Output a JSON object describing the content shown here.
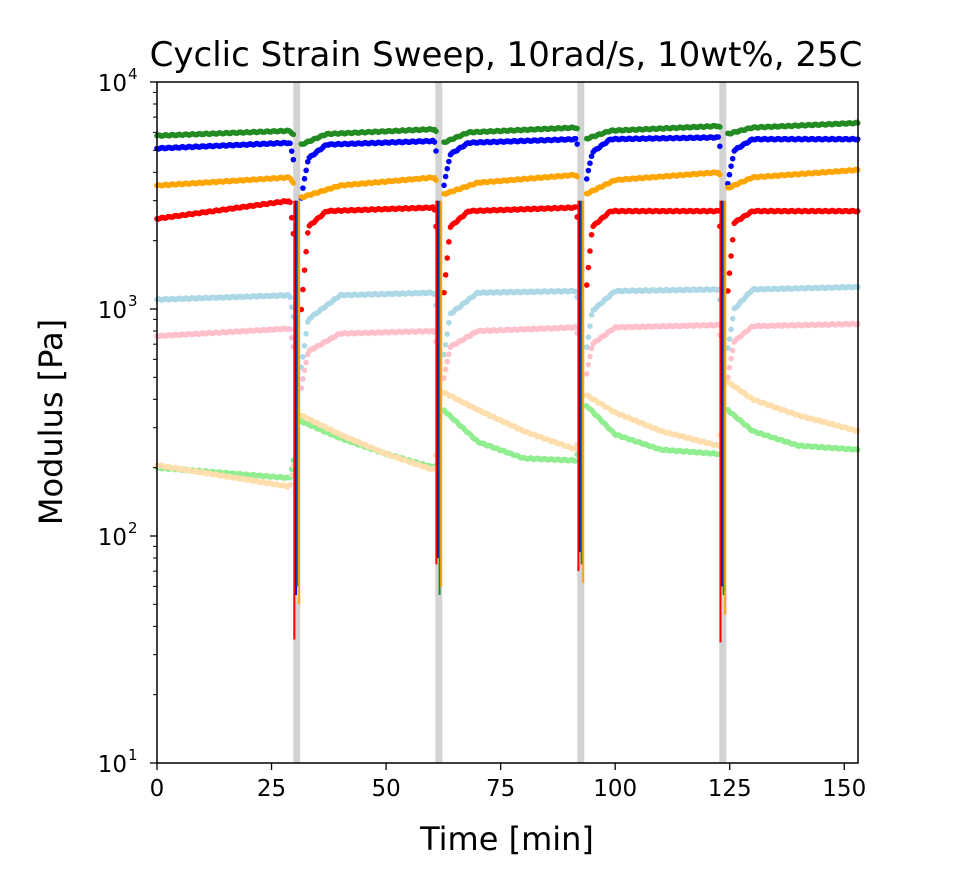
{
  "chart_data": {
    "type": "scatter",
    "title": "Cyclic Strain Sweep, 10rad/s, 10wt%, 25C",
    "xlabel": "Time [min]",
    "ylabel": "Modulus [Pa]",
    "xlim": [
      0,
      153
    ],
    "ylim": [
      10,
      10000
    ],
    "yscale": "log",
    "grid": false,
    "x_ticks": [
      0,
      25,
      50,
      75,
      100,
      125,
      150
    ],
    "x_tick_labels": [
      "0",
      "25",
      "50",
      "75",
      "100",
      "125",
      "150"
    ],
    "y_ticks": [
      10,
      100,
      1000,
      10000
    ],
    "y_tick_labels": [
      {
        "base": "10",
        "exp": "1"
      },
      {
        "base": "10",
        "exp": "2"
      },
      {
        "base": "10",
        "exp": "3"
      },
      {
        "base": "10",
        "exp": "4"
      }
    ],
    "strain_sweep_markers": {
      "color": "#d3d3d3",
      "x": [
        30.5,
        61.5,
        92.5,
        123.5
      ]
    },
    "series": [
      {
        "color": "#228b22",
        "x": [
          0,
          29,
          31.5,
          37,
          60.5,
          62.5,
          68,
          91.5,
          93.5,
          99,
          122.5,
          124.5,
          130,
          153
        ],
        "y": [
          5800,
          6100,
          5300,
          5900,
          6200,
          5400,
          6000,
          6300,
          5600,
          6100,
          6400,
          5900,
          6300,
          6600
        ]
      },
      {
        "color": "#0000ff",
        "x": [
          0,
          29,
          31.5,
          33,
          37,
          60.5,
          62.5,
          64,
          68,
          91.5,
          93.5,
          95,
          99,
          122.5,
          124.5,
          126,
          130,
          153
        ],
        "y": [
          5100,
          5400,
          3100,
          4600,
          5300,
          5500,
          3400,
          4800,
          5400,
          5600,
          3500,
          4900,
          5600,
          5700,
          3500,
          5000,
          5600,
          5600
        ]
      },
      {
        "color": "#ffa500",
        "x": [
          0,
          29,
          31.5,
          40,
          60.5,
          62.5,
          70,
          91.5,
          93.5,
          100,
          122.5,
          124.5,
          130,
          153
        ],
        "y": [
          3500,
          3800,
          3100,
          3500,
          3800,
          3200,
          3600,
          3900,
          3200,
          3700,
          4000,
          3400,
          3800,
          4100
        ]
      },
      {
        "color": "#ff0000",
        "x": [
          0,
          29,
          31.5,
          33,
          37,
          60.5,
          62.5,
          64,
          68,
          91.5,
          93.5,
          95,
          99,
          122.5,
          124.5,
          126,
          130,
          153
        ],
        "y": [
          2500,
          3000,
          1000,
          2300,
          2700,
          2800,
          1100,
          2300,
          2700,
          2800,
          1100,
          2300,
          2700,
          2700,
          1150,
          2400,
          2700,
          2700
        ]
      },
      {
        "color": "#add8e6",
        "x": [
          0,
          29,
          31.5,
          33,
          40,
          60.5,
          62.5,
          64,
          70,
          91.5,
          93.5,
          95,
          100,
          122.5,
          124.5,
          126,
          130,
          153
        ],
        "y": [
          1100,
          1150,
          550,
          900,
          1150,
          1180,
          600,
          950,
          1180,
          1200,
          620,
          980,
          1200,
          1220,
          650,
          1000,
          1220,
          1250
        ]
      },
      {
        "color": "#ffc0cb",
        "x": [
          0,
          29,
          31.5,
          33,
          40,
          60.5,
          62.5,
          64,
          70,
          91.5,
          93.5,
          95,
          100,
          122.5,
          124.5,
          126,
          130,
          153
        ],
        "y": [
          760,
          820,
          450,
          650,
          780,
          800,
          480,
          680,
          800,
          830,
          480,
          700,
          830,
          850,
          490,
          720,
          840,
          860
        ]
      },
      {
        "color": "#90ee90",
        "x": [
          0,
          29,
          31.5,
          40,
          50,
          60.5,
          62.5,
          70,
          80,
          91.5,
          93.5,
          100,
          110,
          122.5,
          124.5,
          130,
          140,
          153
        ],
        "y": [
          200,
          180,
          320,
          270,
          230,
          200,
          360,
          260,
          220,
          215,
          380,
          280,
          240,
          230,
          360,
          290,
          250,
          240
        ]
      },
      {
        "color": "#ffdead",
        "x": [
          0,
          29,
          31.5,
          40,
          50,
          60.5,
          62.5,
          70,
          80,
          91.5,
          93.5,
          100,
          110,
          122.5,
          124.5,
          130,
          140,
          153
        ],
        "y": [
          205,
          165,
          340,
          280,
          230,
          195,
          430,
          360,
          290,
          240,
          420,
          350,
          290,
          250,
          480,
          400,
          340,
          290
        ]
      }
    ],
    "spikes": [
      {
        "x": 30.5,
        "lows": [
          {
            "color": "#ff0000",
            "y": 35
          },
          {
            "color": "#0000ff",
            "y": 55
          },
          {
            "color": "#228b22",
            "y": 60
          },
          {
            "color": "#ffa500",
            "y": 50
          }
        ]
      },
      {
        "x": 61.5,
        "lows": [
          {
            "color": "#ff0000",
            "y": 75
          },
          {
            "color": "#0000ff",
            "y": 80
          },
          {
            "color": "#228b22",
            "y": 55
          },
          {
            "color": "#ffa500",
            "y": 60
          }
        ]
      },
      {
        "x": 92.5,
        "lows": [
          {
            "color": "#ff0000",
            "y": 70
          },
          {
            "color": "#0000ff",
            "y": 85
          },
          {
            "color": "#228b22",
            "y": 75
          },
          {
            "color": "#ffa500",
            "y": 62
          }
        ]
      },
      {
        "x": 123.5,
        "lows": [
          {
            "color": "#ff0000",
            "y": 34
          },
          {
            "color": "#0000ff",
            "y": 60
          },
          {
            "color": "#228b22",
            "y": 55
          },
          {
            "color": "#ffa500",
            "y": 45
          }
        ]
      }
    ]
  }
}
